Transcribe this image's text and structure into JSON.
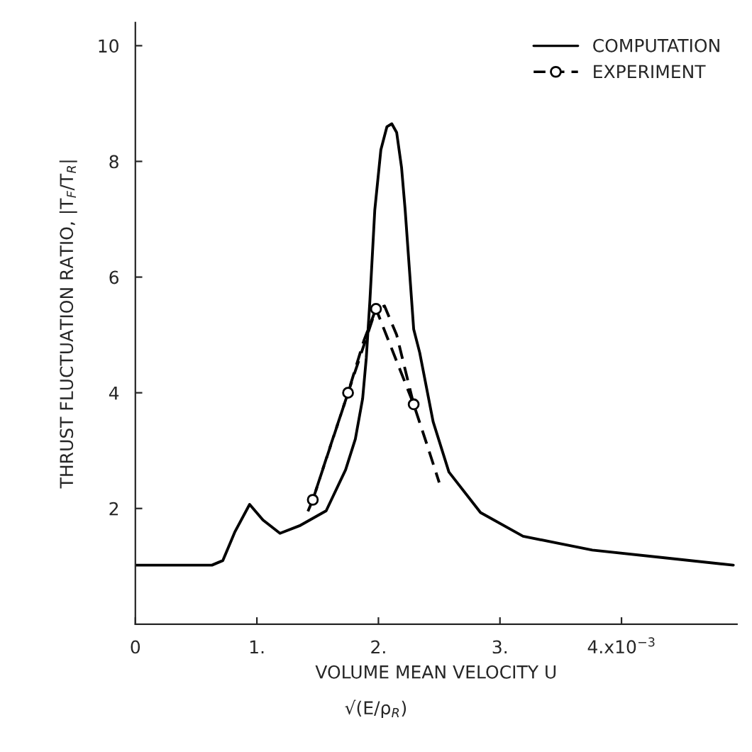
{
  "chart_data": {
    "type": "line",
    "xlabel": "VOLUME MEAN VELOCITY U",
    "ylabel": "THRUST FLUCTUATION RATIO, |T$_{F}$/T$_{R}$|",
    "annotations": [
      "√(E/ρ$_{R}$)"
    ],
    "xlim": [
      0,
      4.95
    ],
    "ylim": [
      0,
      10.4
    ],
    "xticks": [
      {
        "value": 0,
        "label": "0"
      },
      {
        "value": 1,
        "label": "1."
      },
      {
        "value": 2,
        "label": "2."
      },
      {
        "value": 3,
        "label": "3."
      },
      {
        "value": 4,
        "label": "4.x10$^{−3}$"
      }
    ],
    "yticks": [
      2,
      4,
      6,
      8,
      10
    ],
    "grid": false,
    "legend": "top right",
    "series": [
      {
        "name": "COMPUTATION",
        "color": "#000000",
        "line_style": "solid",
        "marker": "none",
        "x": [
          0,
          0.3,
          0.63,
          0.72,
          0.82,
          0.94,
          1.05,
          1.19,
          1.35,
          1.57,
          1.73,
          1.81,
          1.87,
          1.9,
          1.93,
          1.97,
          2.02,
          2.07,
          2.11,
          2.15,
          2.19,
          2.22,
          2.29,
          2.34,
          2.45,
          2.58,
          2.84,
          3.19,
          3.76,
          4.34,
          4.92
        ],
        "values": [
          1.02,
          1.02,
          1.02,
          1.1,
          1.6,
          2.07,
          1.8,
          1.57,
          1.7,
          1.96,
          2.67,
          3.2,
          3.9,
          4.6,
          5.6,
          7.16,
          8.2,
          8.6,
          8.65,
          8.5,
          7.9,
          7.16,
          5.1,
          4.69,
          3.5,
          2.63,
          1.93,
          1.52,
          1.28,
          1.15,
          1.02
        ]
      },
      {
        "name": "EXPERIMENT",
        "color": "#000000",
        "line_style": "dashed",
        "marker": "circle",
        "x": [
          1.46,
          1.75,
          1.98,
          2.29
        ],
        "values": [
          2.15,
          4.0,
          5.45,
          3.8
        ]
      },
      {
        "color": "#000000",
        "line_style": "dashed",
        "marker": "none",
        "x": [
          1.42,
          1.46,
          1.6,
          1.75,
          1.88,
          1.98,
          2.05,
          2.15,
          2.29,
          2.4,
          2.5
        ],
        "values": [
          1.95,
          2.15,
          3.05,
          4.0,
          4.9,
          5.45,
          5.5,
          5.0,
          3.8,
          3.1,
          2.45
        ]
      }
    ]
  }
}
